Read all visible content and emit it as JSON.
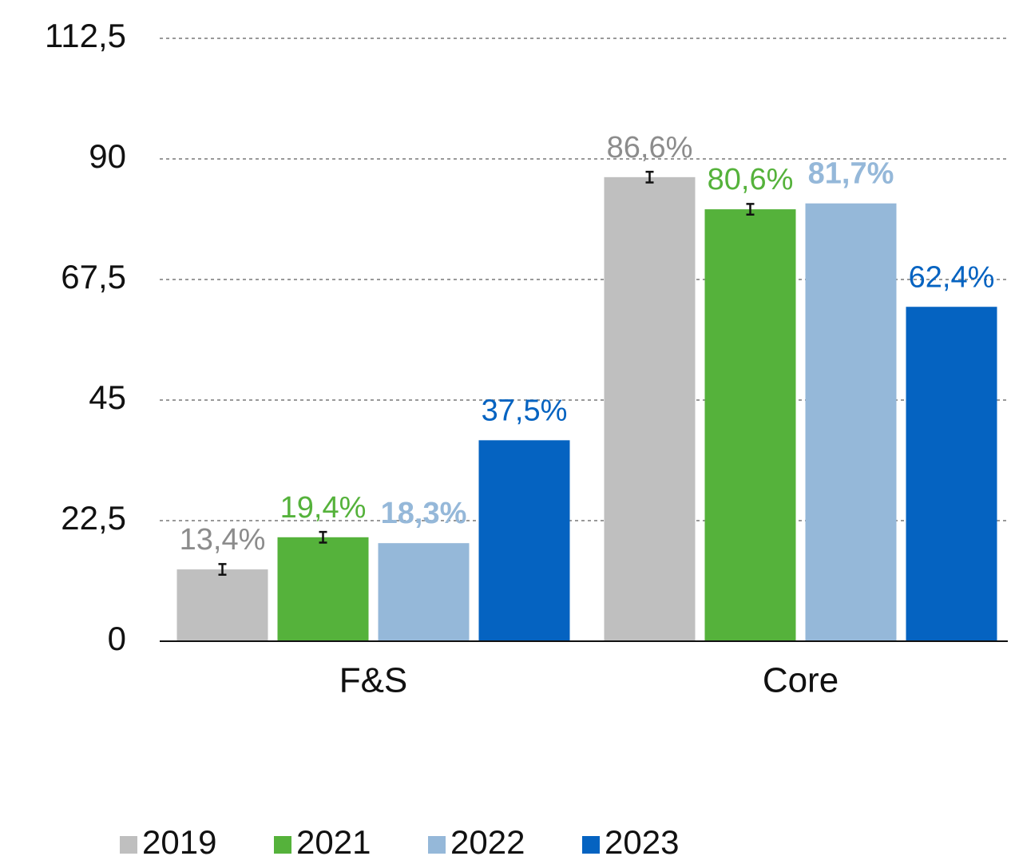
{
  "chart_data": {
    "type": "bar",
    "categories": [
      "F&S",
      "Core"
    ],
    "series": [
      {
        "name": "2019",
        "color": "#bfbfbf",
        "values": [
          13.4,
          86.6
        ],
        "value_labels": [
          "13,4%",
          "86,6%"
        ],
        "errors": [
          1,
          1
        ]
      },
      {
        "name": "2021",
        "color": "#55b23b",
        "values": [
          19.4,
          80.6
        ],
        "value_labels": [
          "19,4%",
          "80,6%"
        ],
        "errors": [
          1,
          1
        ]
      },
      {
        "name": "2022",
        "color": "#95b8d9",
        "values": [
          18.3,
          81.7
        ],
        "value_labels": [
          "18,3%",
          "81,7%"
        ]
      },
      {
        "name": "2023",
        "color": "#0563c1",
        "values": [
          37.5,
          62.4
        ],
        "value_labels": [
          "37,5%",
          "62,4%"
        ]
      }
    ],
    "ylim": [
      0,
      112.5
    ],
    "yticks": [
      0,
      {
        "value": 22.5,
        "label": "22,5"
      },
      45,
      {
        "value": 67.5,
        "label": "67,5"
      },
      90,
      {
        "value": 112.5,
        "label": "112,5"
      }
    ],
    "grid": true
  }
}
